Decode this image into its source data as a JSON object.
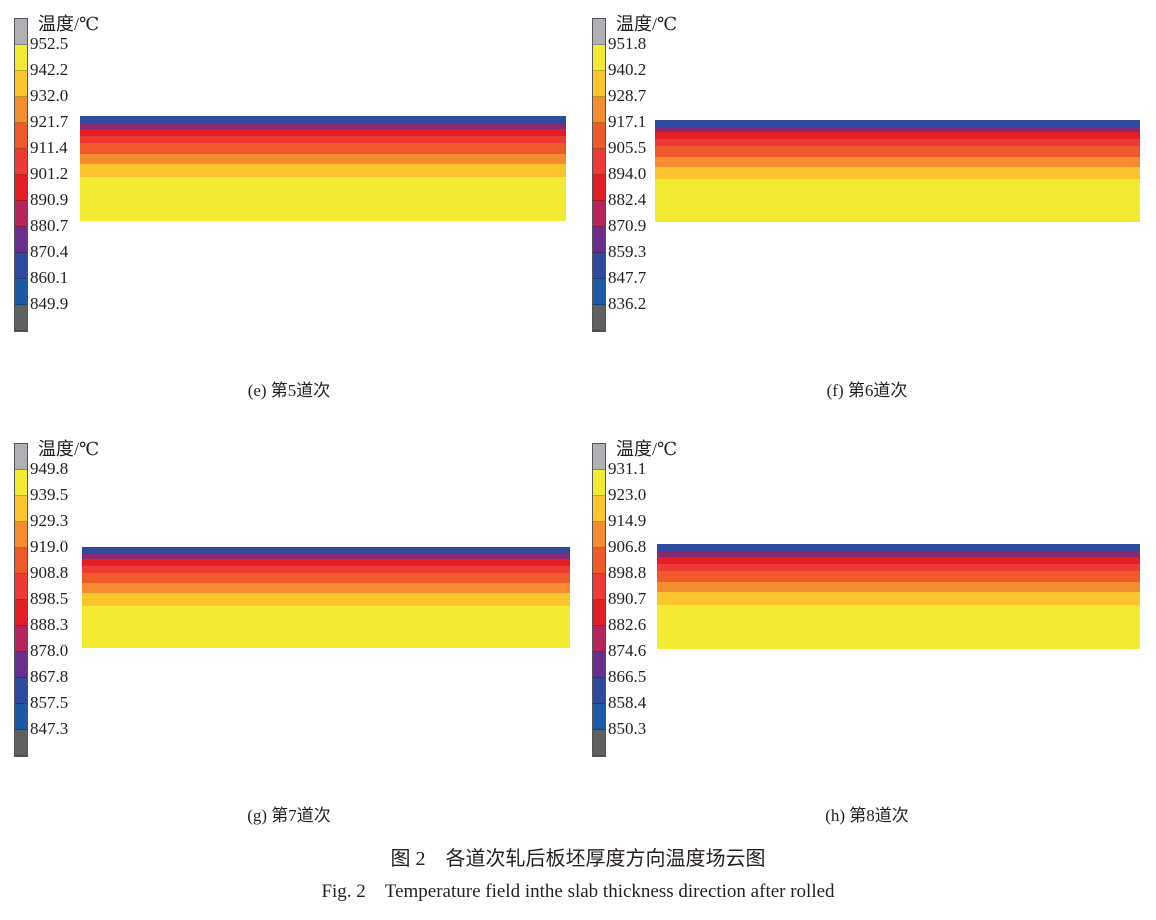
{
  "colorbar_colors": [
    "#aeb0b3",
    "#f3eb31",
    "#fdc52d",
    "#f68c30",
    "#ef5a2b",
    "#ee3a35",
    "#e31e25",
    "#b5245a",
    "#6a2e8f",
    "#2e4a9e",
    "#1c5aa8",
    "#5f6062"
  ],
  "slab_colors_top_to_bottom": [
    "#2e4a9e",
    "#8a2870",
    "#e31e25",
    "#ee3a35",
    "#ef5a2b",
    "#f68c30",
    "#fdc52d",
    "#f3eb31"
  ],
  "panels": [
    {
      "unit": "温度/℃",
      "ticks": [
        "952.5",
        "942.2",
        "932.0",
        "921.7",
        "911.4",
        "901.2",
        "890.9",
        "880.7",
        "870.4",
        "860.1",
        "849.9"
      ],
      "caption": "(e) 第5道次"
    },
    {
      "unit": "温度/℃",
      "ticks": [
        "951.8",
        "940.2",
        "928.7",
        "917.1",
        "905.5",
        "894.0",
        "882.4",
        "870.9",
        "859.3",
        "847.7",
        "836.2"
      ],
      "caption": "(f) 第6道次"
    },
    {
      "unit": "温度/℃",
      "ticks": [
        "949.8",
        "939.5",
        "929.3",
        "919.0",
        "908.8",
        "898.5",
        "888.3",
        "878.0",
        "867.8",
        "857.5",
        "847.3"
      ],
      "caption": "(g) 第7道次"
    },
    {
      "unit": "温度/℃",
      "ticks": [
        "931.1",
        "923.0",
        "914.9",
        "906.8",
        "898.8",
        "890.7",
        "882.6",
        "874.6",
        "866.5",
        "858.4",
        "850.3"
      ],
      "caption": "(h) 第8道次"
    }
  ],
  "figure_caption_cn": "图 2　各道次轧后板坯厚度方向温度场云图",
  "figure_caption_en": "Fig. 2　Temperature field inthe slab thickness direction after rolled"
}
